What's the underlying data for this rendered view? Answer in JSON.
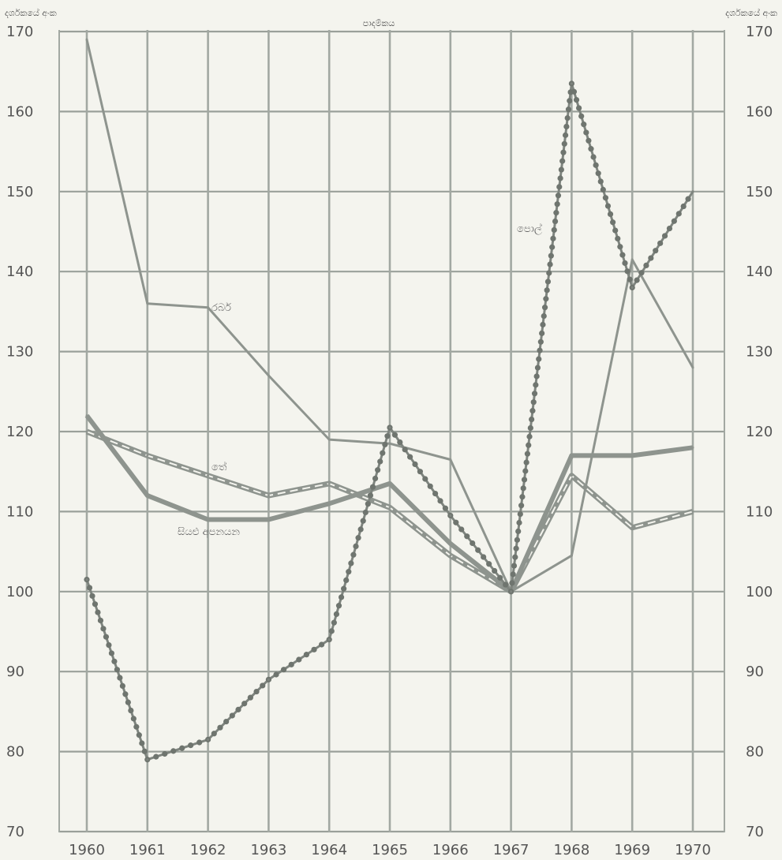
{
  "chart_data": {
    "type": "line",
    "title": "",
    "ylabel_left": "දර්ශකයේ අංක",
    "ylabel_right": "දර්ශකයේ අංක",
    "top_note": "පාදම්කය",
    "x": [
      1960,
      1961,
      1962,
      1963,
      1964,
      1965,
      1966,
      1967,
      1968,
      1969,
      1970
    ],
    "ylim": [
      70,
      170
    ],
    "yticks": [
      70,
      80,
      90,
      100,
      110,
      120,
      130,
      140,
      150,
      160,
      170
    ],
    "grid": true,
    "series": [
      {
        "name": "රබර්",
        "style": "thin",
        "color": "#8e948e",
        "values": [
          169,
          136,
          135.5,
          127,
          119,
          118.5,
          116.5,
          100,
          104.5,
          141.5,
          128
        ]
      },
      {
        "name": "තේ",
        "style": "dashed-double",
        "color": "#8e948e",
        "values": [
          120,
          117,
          114.5,
          112,
          113.5,
          110.5,
          104.5,
          100,
          114.5,
          108,
          110
        ]
      },
      {
        "name": "සියළු අපනයන",
        "style": "thick",
        "color": "#8e948e",
        "values": [
          122,
          112,
          109,
          109,
          111,
          113.5,
          106,
          100,
          117,
          117,
          118
        ]
      },
      {
        "name": "පොල්",
        "style": "dotted",
        "color": "#7f857f",
        "values": [
          101.5,
          79,
          81.5,
          89,
          94,
          120.5,
          109.5,
          100,
          163.5,
          138,
          150
        ]
      }
    ],
    "labels_on_chart": [
      {
        "series": "රබර්",
        "text": "රබර්"
      },
      {
        "series": "තේ",
        "text": "තේ"
      },
      {
        "series": "සියළු අපනයන",
        "text": "සියළු අපනයන"
      },
      {
        "series": "පොල්",
        "text": "පොල්"
      }
    ]
  }
}
